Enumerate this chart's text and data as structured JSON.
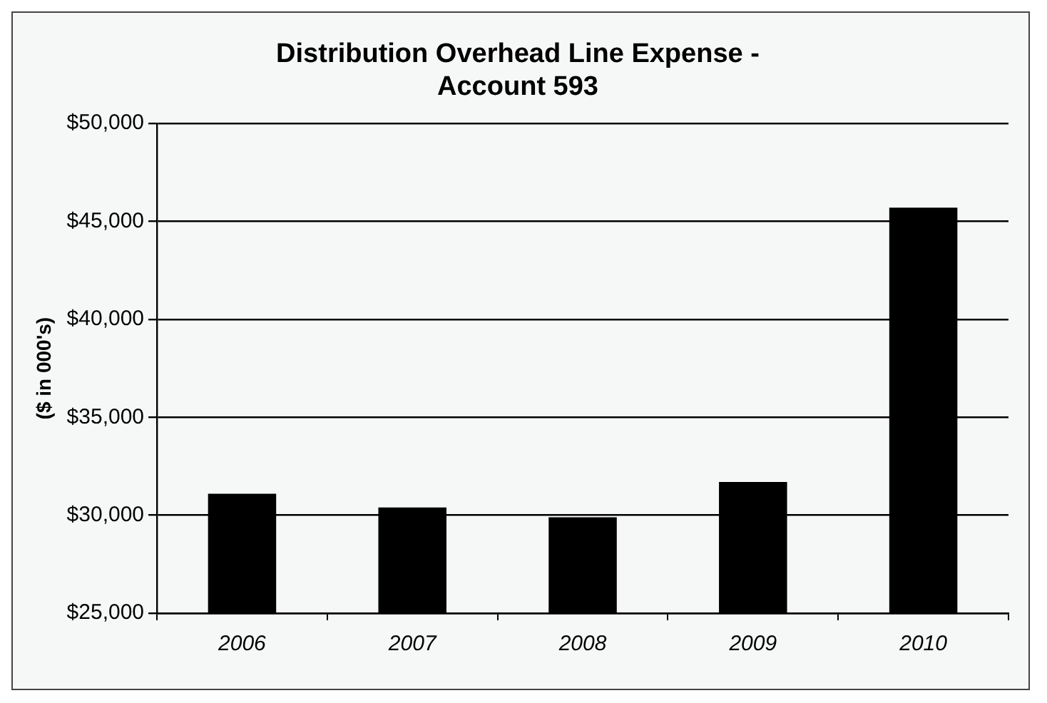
{
  "chart_data": {
    "type": "bar",
    "title": "Distribution Overhead Line Expense -\nAccount 593",
    "ylabel": "($ in 000's)",
    "categories": [
      "2006",
      "2007",
      "2008",
      "2009",
      "2010"
    ],
    "values": [
      31100,
      30400,
      29900,
      31700,
      45700
    ],
    "color": "#000000",
    "ylim": [
      25000,
      50000
    ],
    "yticks": [
      {
        "value": 25000,
        "label": "$25,000"
      },
      {
        "value": 30000,
        "label": "$30,000"
      },
      {
        "value": 35000,
        "label": "$35,000"
      },
      {
        "value": 40000,
        "label": "$40,000"
      },
      {
        "value": 45000,
        "label": "$45,000"
      },
      {
        "value": 50000,
        "label": "$50,000"
      }
    ],
    "grid": "y",
    "legend": false
  }
}
